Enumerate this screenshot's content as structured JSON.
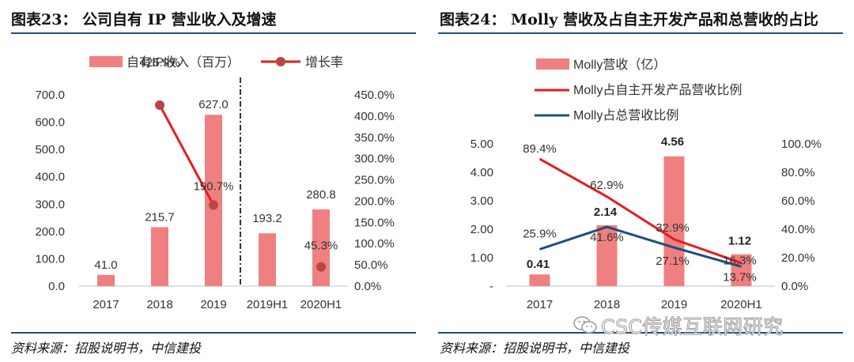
{
  "left_panel": {
    "title": "图表23： 公司自有 IP 营业收入及增速",
    "source": "资料来源：招股说明书，中信建投"
  },
  "right_panel": {
    "title": "图表24： Molly 营收及占自主开发产品和总营收的占比",
    "source": "资料来源：招股说明书，中信建投"
  },
  "watermark": "CSC传媒互联网研究",
  "colors": {
    "bar": "#f08080",
    "red_line": "#e81c1c",
    "blue_line": "#1f4e79",
    "marker": "#bb4444"
  },
  "chart_data": [
    {
      "type": "bar",
      "categories": [
        "2017",
        "2018",
        "2019",
        "2019H1",
        "2020H1"
      ],
      "series": [
        {
          "name": "自有IP收入（百万）",
          "type": "bar",
          "values": [
            41.0,
            215.7,
            627.0,
            193.2,
            280.8
          ],
          "labels": [
            "41.0",
            "215.7",
            "627.0",
            "193.2",
            "280.8"
          ]
        },
        {
          "name": "增长率",
          "type": "line",
          "values": [
            null,
            425.9,
            190.7,
            null,
            45.3
          ],
          "labels": [
            "",
            "425.9%",
            "190.7%",
            "",
            "45.3%"
          ]
        }
      ],
      "left_axis": {
        "ylim": [
          0,
          700
        ],
        "ticks": [
          "0.0",
          "100.0",
          "200.0",
          "300.0",
          "400.0",
          "500.0",
          "600.0",
          "700.0"
        ]
      },
      "right_axis": {
        "ylim": [
          0,
          450
        ],
        "ticks": [
          "0.0%",
          "50.0%",
          "100.0%",
          "150.0%",
          "200.0%",
          "250.0%",
          "300.0%",
          "350.0%",
          "400.0%",
          "450.0%"
        ]
      },
      "divider_between": [
        "2019",
        "2019H1"
      ],
      "legend_position": "top"
    },
    {
      "type": "bar",
      "categories": [
        "2017",
        "2018",
        "2019",
        "2020H1"
      ],
      "series": [
        {
          "name": "Molly营收（亿）",
          "type": "bar",
          "values": [
            0.41,
            2.14,
            4.56,
            1.12
          ],
          "labels": [
            "0.41",
            "2.14",
            "4.56",
            "1.12"
          ]
        },
        {
          "name": "Molly占自主开发产品营收比例",
          "type": "line",
          "values": [
            89.4,
            62.9,
            32.9,
            16.3
          ],
          "labels": [
            "89.4%",
            "62.9%",
            "32.9%",
            "16.3%"
          ]
        },
        {
          "name": "Molly占总营收比例",
          "type": "line",
          "values": [
            25.9,
            41.6,
            27.1,
            13.7
          ],
          "labels": [
            "25.9%",
            "41.6%",
            "27.1%",
            "13.7%"
          ]
        }
      ],
      "left_axis": {
        "ylim": [
          0,
          5
        ],
        "ticks": [
          "-",
          "1.00",
          "2.00",
          "3.00",
          "4.00",
          "5.00"
        ]
      },
      "right_axis": {
        "ylim": [
          0,
          100
        ],
        "ticks": [
          "0.0%",
          "20.0%",
          "40.0%",
          "60.0%",
          "80.0%",
          "100.0%"
        ]
      },
      "legend_position": "top-left"
    }
  ]
}
